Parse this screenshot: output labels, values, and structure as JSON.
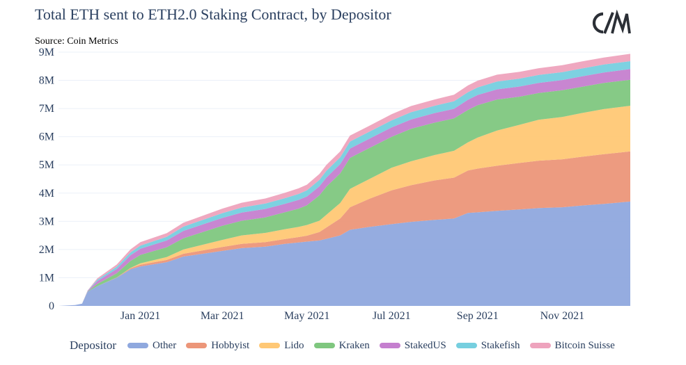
{
  "title": "Total ETH sent to ETH2.0 Staking Contract, by Depositor",
  "source": "Source: Coin Metrics",
  "logo_text": "CM",
  "chart_data": {
    "type": "area",
    "stacked": true,
    "x_axis": {
      "ticks": [
        "2021-01-01",
        "2021-03-01",
        "2021-05-01",
        "2021-07-01",
        "2021-09-01",
        "2021-11-01"
      ],
      "tick_labels": [
        "Jan 2021",
        "Mar 2021",
        "May 2021",
        "Jul 2021",
        "Sep 2021",
        "Nov 2021"
      ],
      "range": [
        "2020-11-03",
        "2021-12-20"
      ]
    },
    "y_axis": {
      "ticks": [
        0,
        1000000,
        2000000,
        3000000,
        4000000,
        5000000,
        6000000,
        7000000,
        8000000,
        9000000
      ],
      "tick_labels": [
        "0",
        "1M",
        "2M",
        "3M",
        "4M",
        "5M",
        "6M",
        "7M",
        "8M",
        "9M"
      ],
      "range": [
        0,
        9000000
      ]
    },
    "grid": "horizontal",
    "legend_title": "Depositor",
    "legend_position": "bottom",
    "x": [
      "2020-11-03",
      "2020-11-15",
      "2020-11-20",
      "2020-11-24",
      "2020-12-01",
      "2020-12-15",
      "2020-12-25",
      "2021-01-01",
      "2021-01-20",
      "2021-02-01",
      "2021-02-15",
      "2021-03-01",
      "2021-03-15",
      "2021-04-01",
      "2021-04-15",
      "2021-04-25",
      "2021-05-01",
      "2021-05-10",
      "2021-05-15",
      "2021-05-25",
      "2021-06-01",
      "2021-06-15",
      "2021-07-01",
      "2021-07-15",
      "2021-08-01",
      "2021-08-15",
      "2021-08-25",
      "2021-09-01",
      "2021-09-15",
      "2021-10-01",
      "2021-10-15",
      "2021-11-01",
      "2021-11-15",
      "2021-12-01",
      "2021-12-20"
    ],
    "series": [
      {
        "name": "Other",
        "color": "#8fa8de",
        "values": [
          0,
          30000,
          80000,
          500000,
          700000,
          1000000,
          1300000,
          1400000,
          1550000,
          1750000,
          1850000,
          1950000,
          2050000,
          2100000,
          2200000,
          2250000,
          2280000,
          2320000,
          2380000,
          2500000,
          2700000,
          2800000,
          2900000,
          2980000,
          3050000,
          3100000,
          3300000,
          3320000,
          3370000,
          3420000,
          3470000,
          3500000,
          3560000,
          3620000,
          3700000
        ]
      },
      {
        "name": "Hobbyist",
        "color": "#ec9679",
        "values": [
          0,
          0,
          0,
          0,
          0,
          10000,
          40000,
          60000,
          80000,
          100000,
          120000,
          140000,
          150000,
          160000,
          170000,
          190000,
          210000,
          300000,
          400000,
          600000,
          800000,
          1000000,
          1200000,
          1300000,
          1400000,
          1450000,
          1500000,
          1550000,
          1600000,
          1650000,
          1680000,
          1700000,
          1730000,
          1760000,
          1780000
        ]
      },
      {
        "name": "Lido",
        "color": "#ffc875",
        "values": [
          0,
          0,
          0,
          0,
          0,
          0,
          10000,
          50000,
          100000,
          150000,
          200000,
          250000,
          300000,
          330000,
          350000,
          360000,
          380000,
          400000,
          450000,
          550000,
          650000,
          700000,
          800000,
          850000,
          900000,
          950000,
          1000000,
          1100000,
          1250000,
          1350000,
          1450000,
          1500000,
          1550000,
          1600000,
          1620000
        ]
      },
      {
        "name": "Kraken",
        "color": "#7fc77f",
        "values": [
          0,
          0,
          0,
          10000,
          80000,
          150000,
          250000,
          300000,
          350000,
          400000,
          450000,
          500000,
          520000,
          550000,
          600000,
          650000,
          700000,
          900000,
          1000000,
          1050000,
          1100000,
          1100000,
          1100000,
          1150000,
          1150000,
          1150000,
          1150000,
          1150000,
          1100000,
          1000000,
          950000,
          950000,
          930000,
          930000,
          920000
        ]
      },
      {
        "name": "StakedUS",
        "color": "#c57fcf",
        "values": [
          0,
          0,
          0,
          20000,
          100000,
          150000,
          200000,
          220000,
          240000,
          260000,
          270000,
          280000,
          290000,
          300000,
          300000,
          310000,
          310000,
          320000,
          320000,
          330000,
          330000,
          330000,
          330000,
          330000,
          340000,
          340000,
          360000,
          360000,
          360000,
          360000,
          360000,
          360000,
          370000,
          370000,
          380000
        ]
      },
      {
        "name": "Stakefish",
        "color": "#76cfdf",
        "values": [
          0,
          0,
          0,
          10000,
          50000,
          80000,
          100000,
          110000,
          130000,
          150000,
          160000,
          170000,
          180000,
          190000,
          200000,
          210000,
          220000,
          230000,
          240000,
          240000,
          250000,
          250000,
          250000,
          260000,
          260000,
          270000,
          270000,
          270000,
          280000,
          280000,
          280000,
          280000,
          280000,
          280000,
          280000
        ]
      },
      {
        "name": "Bitcoin Suisse",
        "color": "#eea3bd",
        "values": [
          0,
          0,
          0,
          10000,
          50000,
          80000,
          110000,
          120000,
          130000,
          140000,
          150000,
          160000,
          170000,
          180000,
          190000,
          200000,
          200000,
          210000,
          210000,
          210000,
          210000,
          210000,
          220000,
          220000,
          220000,
          230000,
          240000,
          240000,
          240000,
          240000,
          240000,
          250000,
          250000,
          250000,
          260000
        ]
      }
    ]
  }
}
